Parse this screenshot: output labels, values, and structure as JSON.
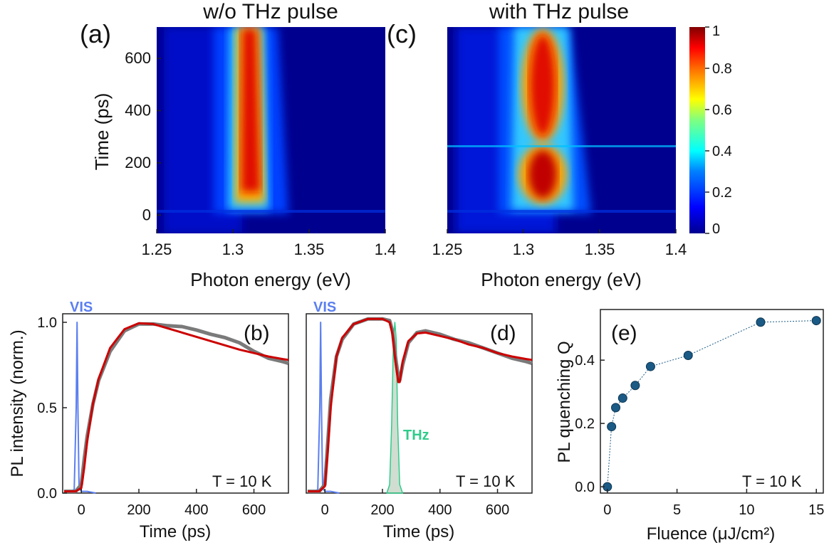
{
  "colors": {
    "colormap": [
      "#00008f",
      "#0000ff",
      "#0080ff",
      "#00ffff",
      "#80ff80",
      "#ffff00",
      "#ff8000",
      "#ff0000",
      "#800000"
    ],
    "pl_measured": "#7a7a7a",
    "fit": "#cc0000",
    "vis_pulse": "#5b7ff0",
    "thz_pulse": "#2ecc8a",
    "marker": "#1a5a85"
  },
  "panels": {
    "a": {
      "label": "(a)",
      "title": "w/o THz pulse"
    },
    "c": {
      "label": "(c)",
      "title": "with THz pulse"
    },
    "b": {
      "label": "(b)",
      "annotation": "T = 10 K",
      "vis_label": "VIS"
    },
    "d": {
      "label": "(d)",
      "annotation": "T = 10 K",
      "vis_label": "VIS",
      "thz_label": "THz"
    },
    "e": {
      "label": "(e)",
      "annotation": "T = 10 K"
    }
  },
  "colorbar": {
    "ticks": [
      "0",
      "0.2",
      "0.4",
      "0.6",
      "0.8",
      "1"
    ]
  },
  "chart_data": [
    {
      "id": "a",
      "type": "heatmap",
      "title": "w/o THz pulse",
      "xlabel": "Photon energy (eV)",
      "ylabel": "Time (ps)",
      "xlim": [
        1.25,
        1.4
      ],
      "ylim": [
        -70,
        720
      ],
      "xticks": [
        "1.25",
        "1.3",
        "1.35",
        "1.4"
      ],
      "yticks": [
        "0",
        "200",
        "400",
        "600"
      ],
      "peak_energy_eV": 1.312,
      "clim": [
        0,
        1
      ]
    },
    {
      "id": "c",
      "type": "heatmap",
      "title": "with THz pulse",
      "xlabel": "Photon energy (eV)",
      "ylabel": "",
      "xlim": [
        1.25,
        1.4
      ],
      "ylim": [
        -70,
        720
      ],
      "xticks": [
        "1.25",
        "1.3",
        "1.35",
        "1.4"
      ],
      "peak_energy_eV": 1.311,
      "thz_arrival_ps": 250,
      "clim": [
        0,
        1
      ]
    },
    {
      "id": "b",
      "type": "line",
      "xlabel": "Time (ps)",
      "ylabel": "PL intensity (norm.)",
      "xlim": [
        -65,
        720
      ],
      "ylim": [
        0,
        1.05
      ],
      "xticks": [
        "0",
        "200",
        "400",
        "600"
      ],
      "yticks": [
        "0.0",
        "0.5",
        "1.0"
      ],
      "series": [
        {
          "key": "vis",
          "x": [
            -60,
            -40,
            -25,
            -18,
            -15,
            -12,
            -8,
            0,
            20,
            50
          ],
          "y": [
            0.01,
            0.01,
            0.02,
            0.5,
            1.0,
            0.5,
            0.03,
            0.01,
            0.01,
            0.0
          ]
        },
        {
          "key": "pl",
          "x": [
            -60,
            -20,
            0,
            10,
            20,
            40,
            60,
            100,
            150,
            200,
            250,
            300,
            350,
            400,
            450,
            500,
            550,
            600,
            650,
            700,
            720
          ],
          "y": [
            0.01,
            0.01,
            0.05,
            0.2,
            0.33,
            0.52,
            0.66,
            0.83,
            0.95,
            0.99,
            0.99,
            0.98,
            0.975,
            0.955,
            0.93,
            0.91,
            0.88,
            0.83,
            0.79,
            0.77,
            0.76
          ]
        },
        {
          "key": "fit",
          "x": [
            -60,
            -20,
            0,
            10,
            20,
            40,
            60,
            100,
            150,
            200,
            250,
            300,
            350,
            400,
            450,
            500,
            550,
            600,
            650,
            700,
            720
          ],
          "y": [
            0.01,
            0.01,
            0.03,
            0.15,
            0.3,
            0.52,
            0.67,
            0.85,
            0.96,
            0.995,
            0.99,
            0.965,
            0.94,
            0.915,
            0.89,
            0.865,
            0.84,
            0.82,
            0.8,
            0.785,
            0.78
          ]
        }
      ]
    },
    {
      "id": "d",
      "type": "line",
      "xlabel": "Time (ps)",
      "ylabel": "",
      "xlim": [
        -65,
        720
      ],
      "ylim": [
        0,
        1.05
      ],
      "xticks": [
        "0",
        "200",
        "400",
        "600"
      ],
      "series": [
        {
          "key": "vis",
          "x": [
            -60,
            -40,
            -25,
            -18,
            -15,
            -12,
            -8,
            0,
            20,
            50
          ],
          "y": [
            0.01,
            0.01,
            0.02,
            0.5,
            1.0,
            0.5,
            0.03,
            0.01,
            0.01,
            0.0
          ]
        },
        {
          "key": "thz",
          "x": [
            215,
            225,
            232,
            238,
            243,
            248,
            253,
            260,
            270
          ],
          "y": [
            0.0,
            0.05,
            0.4,
            0.9,
            1.0,
            0.9,
            0.4,
            0.05,
            0.0
          ]
        },
        {
          "key": "pl",
          "x": [
            -60,
            -20,
            0,
            10,
            20,
            40,
            60,
            100,
            150,
            200,
            225,
            235,
            245,
            255,
            260,
            270,
            290,
            320,
            350,
            400,
            450,
            500,
            550,
            600,
            650,
            700,
            720
          ],
          "y": [
            0.01,
            0.01,
            0.05,
            0.3,
            0.55,
            0.8,
            0.9,
            0.99,
            1.02,
            1.02,
            1.01,
            0.95,
            0.8,
            0.68,
            0.66,
            0.75,
            0.88,
            0.94,
            0.95,
            0.93,
            0.9,
            0.88,
            0.85,
            0.82,
            0.79,
            0.77,
            0.76
          ]
        },
        {
          "key": "fit",
          "x": [
            -60,
            -20,
            0,
            10,
            20,
            40,
            60,
            100,
            150,
            200,
            225,
            235,
            245,
            255,
            260,
            270,
            290,
            320,
            350,
            400,
            450,
            500,
            550,
            600,
            650,
            700,
            720
          ],
          "y": [
            0.01,
            0.01,
            0.04,
            0.25,
            0.5,
            0.8,
            0.91,
            0.99,
            1.02,
            1.02,
            1.0,
            0.93,
            0.77,
            0.65,
            0.65,
            0.77,
            0.89,
            0.935,
            0.94,
            0.92,
            0.9,
            0.87,
            0.85,
            0.82,
            0.8,
            0.785,
            0.78
          ]
        }
      ]
    },
    {
      "id": "e",
      "type": "scatter",
      "xlabel": "Fluence (μJ/cm²)",
      "ylabel": "PL quenching Q",
      "xlim": [
        -0.5,
        15.5
      ],
      "ylim": [
        -0.02,
        0.56
      ],
      "xticks": [
        "0",
        "5",
        "10",
        "15"
      ],
      "yticks": [
        "0.0",
        "0.2",
        "0.4"
      ],
      "series": [
        {
          "x": [
            0,
            0.3,
            0.6,
            1.1,
            2.0,
            3.1,
            5.8,
            11.0,
            15.0
          ],
          "y": [
            0.0,
            0.19,
            0.25,
            0.28,
            0.32,
            0.38,
            0.415,
            0.52,
            0.525
          ]
        }
      ]
    }
  ]
}
